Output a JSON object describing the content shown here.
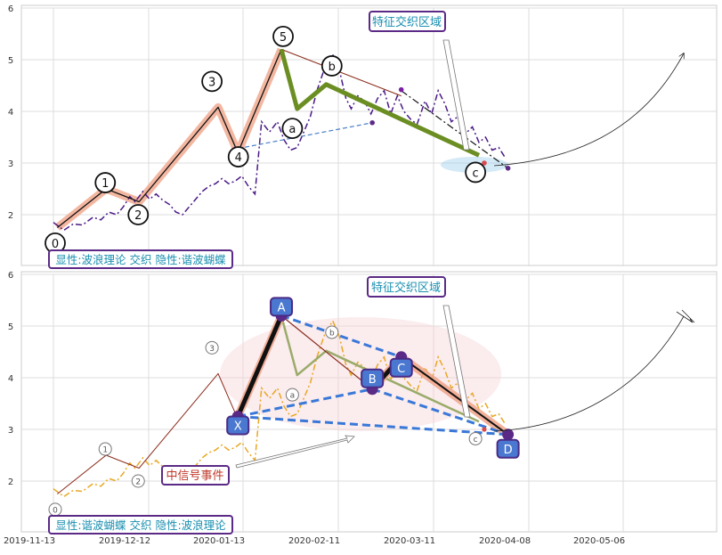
{
  "chart_data": [
    {
      "type": "line",
      "panel": "top",
      "y_ticks": [
        "2",
        "3",
        "4",
        "5",
        "6"
      ],
      "ylim": [
        1,
        6
      ],
      "grid": true,
      "banner": "显性:波浪理论 交织 隐性:谐波蝴蝶",
      "zone_label": "特征交织区域",
      "price_series": [
        {
          "x": 0.0,
          "y": 1.85
        },
        {
          "x": 0.8,
          "y": 1.7
        },
        {
          "x": 1.5,
          "y": 1.82
        },
        {
          "x": 2.2,
          "y": 1.8
        },
        {
          "x": 3.0,
          "y": 1.95
        },
        {
          "x": 3.6,
          "y": 1.9
        },
        {
          "x": 4.2,
          "y": 2.05
        },
        {
          "x": 4.8,
          "y": 2.0
        },
        {
          "x": 5.3,
          "y": 2.15
        },
        {
          "x": 5.8,
          "y": 2.35
        },
        {
          "x": 6.2,
          "y": 2.25
        },
        {
          "x": 6.8,
          "y": 2.45
        },
        {
          "x": 7.3,
          "y": 2.3
        },
        {
          "x": 7.8,
          "y": 2.4
        },
        {
          "x": 8.3,
          "y": 2.28
        },
        {
          "x": 8.8,
          "y": 2.2
        },
        {
          "x": 9.3,
          "y": 2.05
        },
        {
          "x": 9.8,
          "y": 2.0
        },
        {
          "x": 10.3,
          "y": 2.15
        },
        {
          "x": 10.8,
          "y": 2.3
        },
        {
          "x": 11.3,
          "y": 2.45
        },
        {
          "x": 11.8,
          "y": 2.55
        },
        {
          "x": 12.3,
          "y": 2.6
        },
        {
          "x": 12.8,
          "y": 2.7
        },
        {
          "x": 13.3,
          "y": 2.6
        },
        {
          "x": 13.8,
          "y": 2.65
        },
        {
          "x": 14.3,
          "y": 2.75
        },
        {
          "x": 14.8,
          "y": 2.55
        },
        {
          "x": 15.3,
          "y": 2.4
        },
        {
          "x": 15.8,
          "y": 3.8
        },
        {
          "x": 16.4,
          "y": 3.6
        },
        {
          "x": 17.0,
          "y": 3.8
        },
        {
          "x": 17.5,
          "y": 3.45
        },
        {
          "x": 18.0,
          "y": 3.25
        },
        {
          "x": 18.5,
          "y": 3.3
        },
        {
          "x": 19.0,
          "y": 3.6
        },
        {
          "x": 19.5,
          "y": 3.9
        },
        {
          "x": 20.0,
          "y": 4.4
        },
        {
          "x": 20.6,
          "y": 4.85
        },
        {
          "x": 21.2,
          "y": 5.1
        },
        {
          "x": 21.7,
          "y": 4.8
        },
        {
          "x": 22.2,
          "y": 4.25
        },
        {
          "x": 22.6,
          "y": 4.05
        },
        {
          "x": 23.1,
          "y": 4.3
        },
        {
          "x": 23.6,
          "y": 4.2
        },
        {
          "x": 24.1,
          "y": 3.95
        },
        {
          "x": 24.6,
          "y": 4.25
        },
        {
          "x": 25.1,
          "y": 4.4
        },
        {
          "x": 25.6,
          "y": 3.95
        },
        {
          "x": 26.1,
          "y": 4.3
        },
        {
          "x": 26.6,
          "y": 4.0
        },
        {
          "x": 27.1,
          "y": 3.85
        },
        {
          "x": 27.6,
          "y": 3.75
        },
        {
          "x": 28.2,
          "y": 4.2
        },
        {
          "x": 28.7,
          "y": 3.95
        },
        {
          "x": 29.2,
          "y": 4.4
        },
        {
          "x": 29.7,
          "y": 4.15
        },
        {
          "x": 30.2,
          "y": 3.8
        },
        {
          "x": 30.7,
          "y": 3.9
        },
        {
          "x": 31.2,
          "y": 3.55
        },
        {
          "x": 31.8,
          "y": 3.7
        },
        {
          "x": 32.3,
          "y": 3.4
        },
        {
          "x": 32.8,
          "y": 3.5
        },
        {
          "x": 33.3,
          "y": 3.25
        },
        {
          "x": 33.8,
          "y": 3.3
        },
        {
          "x": 34.3,
          "y": 3.1
        }
      ],
      "impulse": [
        {
          "x": 0.3,
          "y": 1.75
        },
        {
          "x": 4.0,
          "y": 2.5
        },
        {
          "x": 6.5,
          "y": 2.25
        },
        {
          "x": 12.5,
          "y": 4.08
        },
        {
          "x": 14.0,
          "y": 3.2
        },
        {
          "x": 17.3,
          "y": 5.2
        }
      ],
      "corrective": [
        {
          "x": 17.3,
          "y": 5.2
        },
        {
          "x": 18.5,
          "y": 4.05
        },
        {
          "x": 20.7,
          "y": 4.52
        },
        {
          "x": 32.3,
          "y": 3.15
        }
      ],
      "butterfly_dashdot": [
        {
          "x": 26.4,
          "y": 4.4
        },
        {
          "x": 34.5,
          "y": 2.9
        }
      ],
      "butterfly_dash": [
        {
          "x": 14.0,
          "y": 3.28
        },
        {
          "x": 24.2,
          "y": 3.78
        }
      ],
      "wave_labels": [
        {
          "text": "0",
          "x": 0.0,
          "y": 1.45
        },
        {
          "text": "1",
          "x": 3.8,
          "y": 2.62
        },
        {
          "text": "2",
          "x": 6.3,
          "y": 2.0
        },
        {
          "text": "3",
          "x": 11.9,
          "y": 4.58
        },
        {
          "text": "4",
          "x": 13.9,
          "y": 3.12
        },
        {
          "text": "5",
          "x": 17.3,
          "y": 5.45
        },
        {
          "text": "a",
          "x": 18.0,
          "y": 3.67
        },
        {
          "text": "b",
          "x": 21.0,
          "y": 4.88
        },
        {
          "text": "c",
          "x": 31.9,
          "y": 2.82
        }
      ],
      "end_points": [
        {
          "x": 24.2,
          "y": 3.78,
          "color": "#5b2a86"
        },
        {
          "x": 26.4,
          "y": 4.42,
          "color": "#7a1fa2"
        },
        {
          "x": 32.7,
          "y": 3.0,
          "color": "#d94b4b"
        },
        {
          "x": 34.5,
          "y": 2.9,
          "color": "#5b2a86"
        }
      ]
    },
    {
      "type": "line",
      "panel": "bottom",
      "y_ticks": [
        "2",
        "3",
        "4",
        "5",
        "6"
      ],
      "ylim": [
        1,
        6
      ],
      "x_ticks": [
        "2019-11-13",
        "2019-12-12",
        "2020-01-13",
        "2020-02-11",
        "2020-03-11",
        "2020-04-08",
        "2020-05-06"
      ],
      "grid": true,
      "banner": "显性:谐波蝴蝶 交织 隐性:波浪理论",
      "zone_label": "特征交织区域",
      "signal_label": "中信号事件",
      "points": [
        {
          "name": "X",
          "x": 14.0,
          "y": 3.25
        },
        {
          "name": "A",
          "x": 17.3,
          "y": 5.2
        },
        {
          "name": "B",
          "x": 24.2,
          "y": 3.78
        },
        {
          "name": "C",
          "x": 26.4,
          "y": 4.4
        },
        {
          "name": "D",
          "x": 34.5,
          "y": 2.9
        }
      ],
      "wave_labels": [
        {
          "text": "0",
          "x": 0.0,
          "y": 1.45
        },
        {
          "text": "1",
          "x": 3.8,
          "y": 2.62
        },
        {
          "text": "2",
          "x": 6.3,
          "y": 2.0
        },
        {
          "text": "3",
          "x": 11.9,
          "y": 4.58
        },
        {
          "text": "a",
          "x": 18.0,
          "y": 3.67
        },
        {
          "text": "b",
          "x": 21.0,
          "y": 4.88
        },
        {
          "text": "c",
          "x": 31.9,
          "y": 2.82
        }
      ]
    }
  ]
}
